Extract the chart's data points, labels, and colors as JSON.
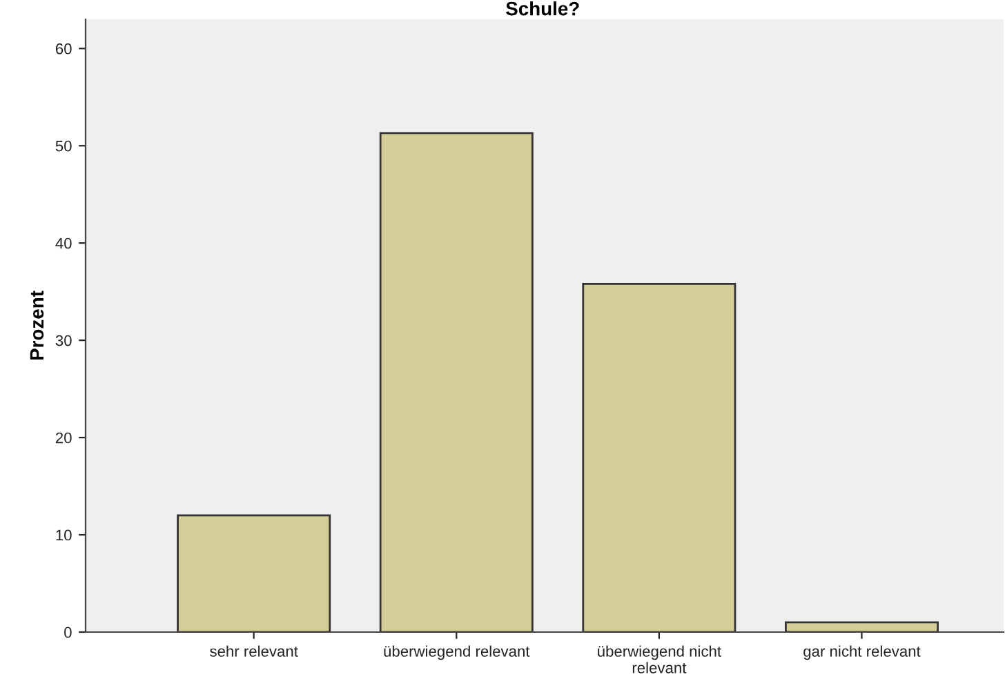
{
  "chart_data": {
    "type": "bar",
    "title": "Schule?",
    "ylabel": "Prozent",
    "categories": [
      "sehr relevant",
      "überwiegend relevant",
      "überwiegend nicht\nrelevant",
      "gar nicht relevant"
    ],
    "values": [
      12,
      51.3,
      35.8,
      1
    ],
    "color": "#d3cd97",
    "ylim": [
      0,
      63
    ],
    "yticks": [
      0,
      10,
      20,
      30,
      40,
      50,
      60
    ],
    "grid": false
  }
}
